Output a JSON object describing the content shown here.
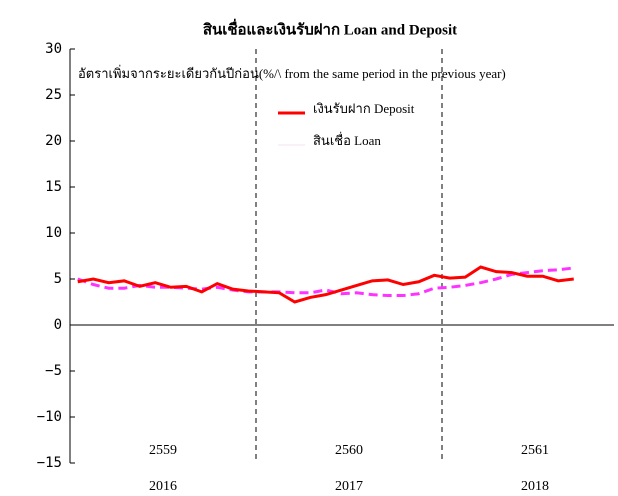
{
  "chart_data": {
    "type": "line",
    "title": "สินเชื่อและเงินรับฝาก Loan and Deposit",
    "annotation": "อัตราเพิ่มจากระยะเดียวกันปีก่อน(%/\\ from the same period in the previous year)",
    "year_labels": [
      "2016",
      "2017",
      "2018"
    ],
    "be_year_labels": [
      "2559",
      "2560",
      "2561"
    ],
    "series": [
      {
        "name": "เงินรับฝาก Deposit",
        "color": "#ff0000",
        "dash": false,
        "values": [
          4.7,
          5.0,
          4.6,
          4.8,
          4.2,
          4.6,
          4.1,
          4.2,
          3.6,
          4.5,
          3.9,
          3.7,
          3.6,
          3.5,
          2.5,
          3.0,
          3.3,
          3.8,
          4.3,
          4.8,
          4.9,
          4.4,
          4.7,
          5.4,
          5.1,
          5.2,
          6.3,
          5.8,
          5.7,
          5.3,
          5.3,
          4.8,
          5.0
        ]
      },
      {
        "name": "สินเชื่อ Loan",
        "color": "#ff33ff",
        "dash": true,
        "values": [
          5.0,
          4.4,
          4.0,
          4.0,
          4.3,
          4.1,
          4.1,
          4.0,
          3.9,
          4.1,
          3.8,
          3.6,
          3.6,
          3.6,
          3.5,
          3.5,
          3.8,
          3.4,
          3.5,
          3.3,
          3.2,
          3.2,
          3.4,
          4.0,
          4.1,
          4.3,
          4.6,
          5.0,
          5.5,
          5.7,
          5.9,
          6.0,
          6.2
        ]
      }
    ],
    "ylim": [
      -15,
      30
    ],
    "yticks": [
      {
        "value": -15,
        "label": "−15"
      },
      {
        "value": -10,
        "label": "−10"
      },
      {
        "value": -5,
        "label": "−5"
      },
      0,
      5,
      10,
      15,
      20,
      25,
      30
    ]
  }
}
